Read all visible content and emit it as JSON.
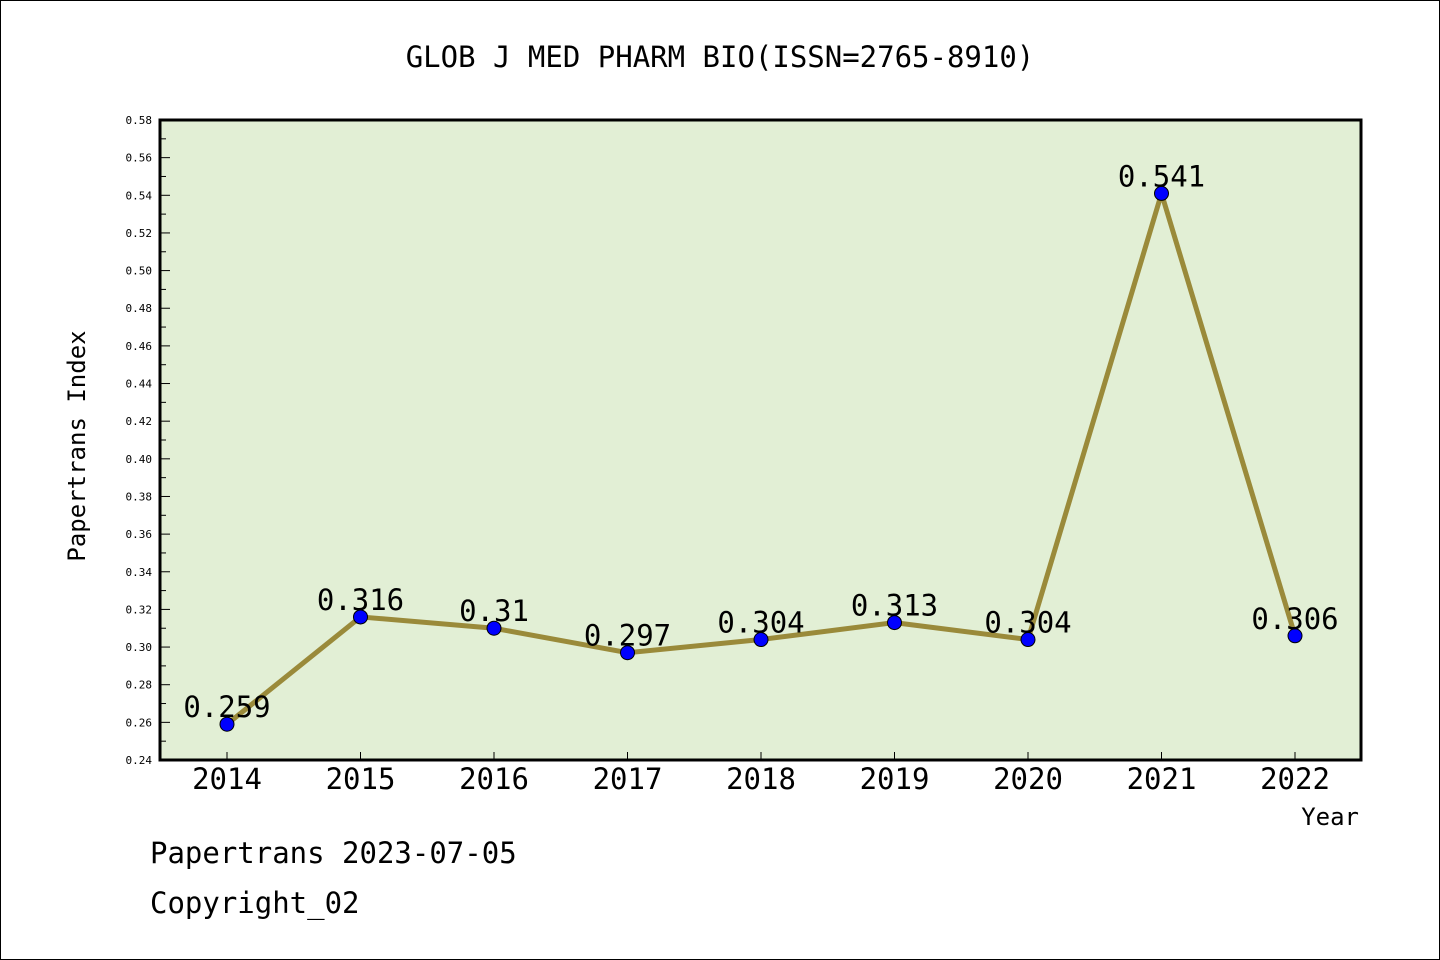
{
  "chart_data": {
    "type": "line",
    "title": "GLOB J MED PHARM BIO(ISSN=2765-8910)",
    "xlabel": "Year",
    "ylabel": "Papertrans Index",
    "categories": [
      "2014",
      "2015",
      "2016",
      "2017",
      "2018",
      "2019",
      "2020",
      "2021",
      "2022"
    ],
    "values": [
      0.259,
      0.316,
      0.31,
      0.297,
      0.304,
      0.313,
      0.304,
      0.541,
      0.306
    ],
    "data_labels": [
      "0.259",
      "0.316",
      "0.31",
      "0.297",
      "0.304",
      "0.313",
      "0.304",
      "0.541",
      "0.306"
    ],
    "ylim": [
      0.24,
      0.58
    ],
    "y_major_step": 0.02,
    "y_tick_labels": [
      "0.24",
      "0.26",
      "0.28",
      "0.30",
      "0.32",
      "0.34",
      "0.36",
      "0.38",
      "0.40",
      "0.42",
      "0.44",
      "0.46",
      "0.48",
      "0.50",
      "0.52",
      "0.54",
      "0.56",
      "0.58"
    ],
    "grid": false,
    "legend": "none",
    "colors": {
      "plot_background": "#e2efd5",
      "line": "#9a8a3a",
      "marker": "#0000ff"
    }
  },
  "footer": {
    "line1": "Papertrans 2023-07-05",
    "line2": "Copyright_02"
  }
}
